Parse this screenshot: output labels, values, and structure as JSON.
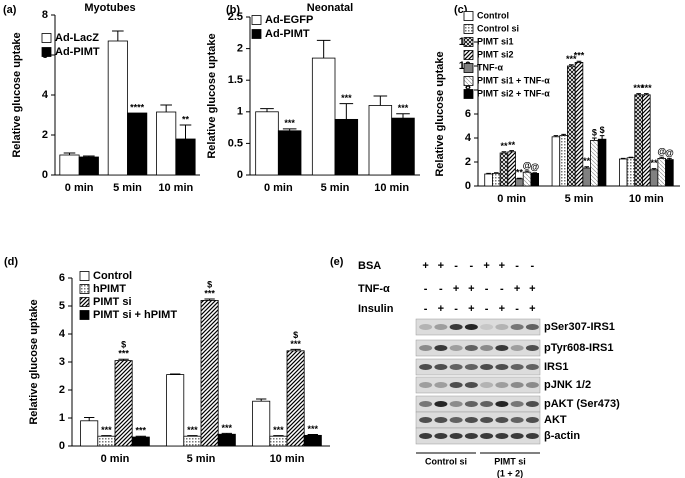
{
  "chart_data": [
    {
      "type": "bar",
      "label": "(a)",
      "title": "Myotubes",
      "ylabel": "Relative glucose uptake",
      "categories": [
        "0 min",
        "5 min",
        "10 min"
      ],
      "ylim": [
        0,
        8
      ],
      "yticks": [
        0,
        2,
        4,
        6,
        8
      ],
      "legend": "upper left",
      "series": [
        {
          "name": "Ad-LacZ",
          "color": "#ffffff",
          "values": [
            1.0,
            6.7,
            3.15
          ],
          "errors": [
            0.1,
            0.5,
            0.35
          ],
          "marks": [
            null,
            null,
            null
          ]
        },
        {
          "name": "Ad-PIMT",
          "color": "#000000",
          "values": [
            0.9,
            3.1,
            1.8
          ],
          "errors": [
            0.05,
            null,
            0.7
          ],
          "marks": [
            null,
            [
              "****"
            ],
            [
              "**"
            ]
          ]
        }
      ]
    },
    {
      "type": "bar",
      "label": "(b)",
      "title": "Neonatal",
      "ylabel": "Relative glucose uptake",
      "categories": [
        "0 min",
        "5 min",
        "10 min"
      ],
      "ylim": [
        0,
        2.5
      ],
      "yticks": [
        0,
        0.5,
        1,
        1.5,
        2,
        2.5
      ],
      "legend": "upper left",
      "series": [
        {
          "name": "Ad-EGFP",
          "color": "#ffffff",
          "values": [
            1.0,
            1.85,
            1.1
          ],
          "errors": [
            0.05,
            0.28,
            0.15
          ],
          "marks": [
            null,
            null,
            null
          ]
        },
        {
          "name": "Ad-PIMT",
          "color": "#000000",
          "values": [
            0.7,
            0.88,
            0.9
          ],
          "errors": [
            0.03,
            0.25,
            0.07
          ],
          "marks": [
            [
              "***"
            ],
            [
              "***"
            ],
            [
              "***"
            ]
          ]
        }
      ]
    },
    {
      "type": "bar",
      "label": "(c)",
      "ylabel": "Relative glucose uptake",
      "categories": [
        "0 min",
        "5 min",
        "10 min"
      ],
      "ylim": [
        0,
        12
      ],
      "yticks": [
        0,
        2,
        4,
        6,
        8,
        10,
        12
      ],
      "legend": "upper left",
      "series": [
        {
          "name": "Control",
          "color": "#ffffff",
          "values": [
            1.0,
            4.1,
            2.25
          ],
          "errors": [
            0.05,
            0.1,
            0.05
          ],
          "marks": [
            null,
            null,
            null
          ]
        },
        {
          "name": "Control si",
          "color": "#ffffff",
          "pattern": "dots",
          "values": [
            1.05,
            4.2,
            2.35
          ],
          "errors": [
            0.05,
            0.1,
            0.05
          ],
          "marks": [
            null,
            null,
            null
          ]
        },
        {
          "name": "PIMT si1",
          "color": "#ffffff",
          "pattern": "crosshatch",
          "values": [
            2.75,
            10.0,
            7.6
          ],
          "errors": [
            0.1,
            0.1,
            0.1
          ],
          "marks": [
            [
              "**"
            ],
            [
              "***"
            ],
            [
              "***"
            ]
          ]
        },
        {
          "name": "PIMT si2",
          "color": "#ffffff",
          "pattern": "diagonal",
          "values": [
            2.85,
            10.3,
            7.6
          ],
          "errors": [
            0.1,
            0.1,
            0.1
          ],
          "marks": [
            [
              "**"
            ],
            [
              "***"
            ],
            [
              "***"
            ]
          ]
        },
        {
          "name": "TNF-α",
          "color": "#808080",
          "values": [
            0.6,
            1.5,
            1.35
          ],
          "errors": [
            0.05,
            0.1,
            0.1
          ],
          "marks": [
            [
              "**"
            ],
            [
              "**"
            ],
            [
              "**"
            ]
          ]
        },
        {
          "name": "PIMT si1 + TNF-α",
          "color": "#ffffff",
          "pattern": "light",
          "values": [
            1.15,
            3.8,
            2.3
          ],
          "errors": [
            0.1,
            0.2,
            0.1
          ],
          "marks": [
            [
              "@"
            ],
            [
              "$"
            ],
            [
              "@"
            ]
          ]
        },
        {
          "name": "PIMT si2 + TNF-α",
          "color": "#000000",
          "values": [
            1.05,
            3.9,
            2.2
          ],
          "errors": [
            0.05,
            0.3,
            0.1
          ],
          "marks": [
            [
              "@"
            ],
            [
              "$"
            ],
            [
              "@"
            ]
          ]
        }
      ]
    },
    {
      "type": "bar",
      "label": "(d)",
      "ylabel": "Relative glucose uptake",
      "categories": [
        "0 min",
        "5 min",
        "10 min"
      ],
      "ylim": [
        0,
        6
      ],
      "yticks": [
        0,
        1,
        2,
        3,
        4,
        5,
        6
      ],
      "legend": "upper left",
      "series": [
        {
          "name": "Control",
          "color": "#ffffff",
          "values": [
            0.9,
            2.55,
            1.6
          ],
          "errors": [
            0.12,
            0.02,
            0.08
          ],
          "marks": [
            null,
            null,
            null
          ]
        },
        {
          "name": "hPIMT",
          "color": "#ffffff",
          "pattern": "dots",
          "values": [
            0.35,
            0.35,
            0.35
          ],
          "errors": [
            0.02,
            0.02,
            0.02
          ],
          "marks": [
            [
              "***"
            ],
            [
              "***"
            ],
            [
              "***"
            ]
          ]
        },
        {
          "name": "PIMT si",
          "color": "#ffffff",
          "pattern": "diagonal",
          "values": [
            3.05,
            5.2,
            3.4
          ],
          "errors": [
            0.05,
            0.05,
            0.05
          ],
          "marks": [
            [
              "$",
              "***"
            ],
            [
              "$",
              "***"
            ],
            [
              "$",
              "***"
            ]
          ]
        },
        {
          "name": "PIMT si + hPIMT",
          "color": "#000000",
          "values": [
            0.32,
            0.42,
            0.38
          ],
          "errors": [
            0.03,
            0.03,
            0.03
          ],
          "marks": [
            [
              "***"
            ],
            [
              "***"
            ],
            [
              "***"
            ]
          ]
        }
      ]
    }
  ],
  "blot": {
    "label": "(e)",
    "treatments": [
      {
        "name": "BSA",
        "signs": [
          "+",
          "+",
          "-",
          "-",
          "+",
          "+",
          "-",
          "-"
        ]
      },
      {
        "name": "TNF-α",
        "signs": [
          "-",
          "-",
          "+",
          "+",
          "-",
          "-",
          "+",
          "+"
        ]
      },
      {
        "name": "Insulin",
        "signs": [
          "-",
          "+",
          "-",
          "+",
          "-",
          "+",
          "-",
          "+"
        ]
      }
    ],
    "bands": [
      "pSer307-IRS1",
      "pTyr608-IRS1",
      "IRS1",
      "pJNK 1/2",
      "pAKT (Ser473)",
      "AKT",
      "β-actin"
    ],
    "groups": [
      [
        "Control si"
      ],
      [
        "PIMT si",
        "(1 + 2)"
      ]
    ]
  }
}
